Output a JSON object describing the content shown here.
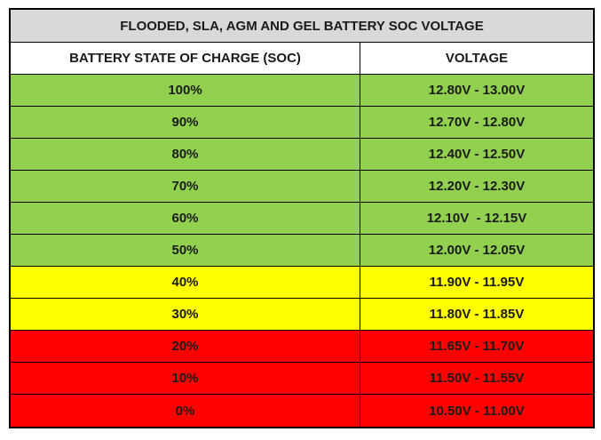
{
  "table": {
    "title": "FLOODED, SLA, AGM AND GEL BATTERY SOC VOLTAGE",
    "headers": [
      "BATTERY STATE OF CHARGE (SOC)",
      "VOLTAGE"
    ],
    "rows": [
      {
        "soc": "100%",
        "voltage": "12.80V - 13.00V",
        "color": "#92d050"
      },
      {
        "soc": "90%",
        "voltage": "12.70V - 12.80V",
        "color": "#92d050"
      },
      {
        "soc": "80%",
        "voltage": "12.40V - 12.50V",
        "color": "#92d050"
      },
      {
        "soc": "70%",
        "voltage": "12.20V - 12.30V",
        "color": "#92d050"
      },
      {
        "soc": "60%",
        "voltage": "12.10V  - 12.15V",
        "color": "#92d050"
      },
      {
        "soc": "50%",
        "voltage": "12.00V - 12.05V",
        "color": "#92d050"
      },
      {
        "soc": "40%",
        "voltage": "11.90V - 11.95V",
        "color": "#ffff00"
      },
      {
        "soc": "30%",
        "voltage": "11.80V - 11.85V",
        "color": "#ffff00"
      },
      {
        "soc": "20%",
        "voltage": "11.65V - 11.70V",
        "color": "#ff0000"
      },
      {
        "soc": "10%",
        "voltage": "11.50V - 11.55V",
        "color": "#ff0000"
      },
      {
        "soc": "0%",
        "voltage": "10.50V - 11.00V",
        "color": "#ff0000"
      }
    ]
  }
}
